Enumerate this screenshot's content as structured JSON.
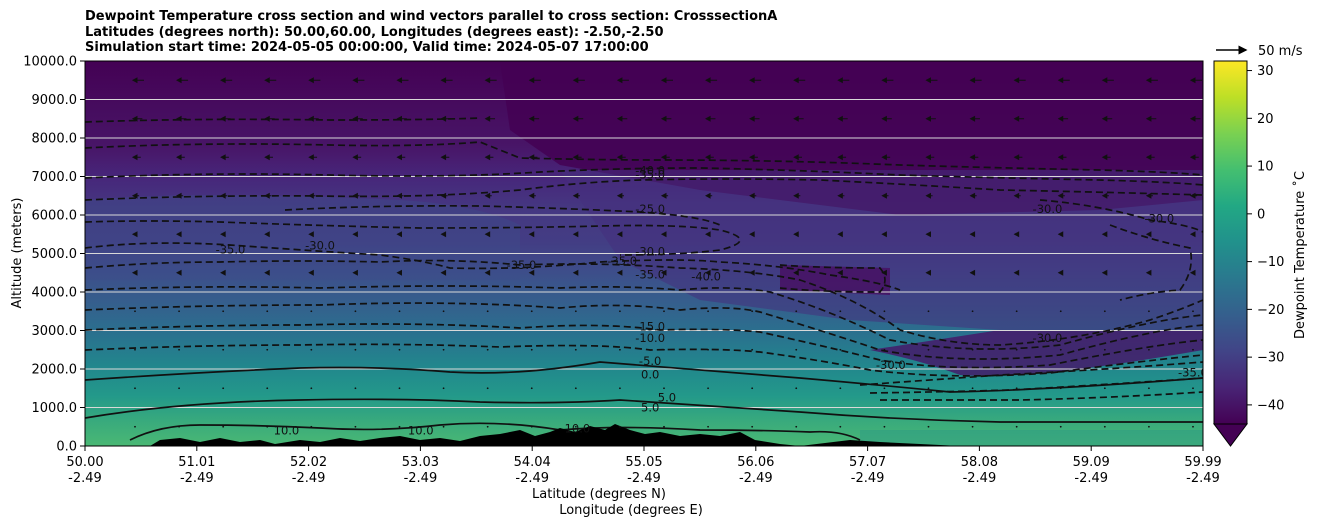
{
  "title_lines": [
    "Dewpoint Temperature cross section and wind vectors parallel to cross section: CrosssectionA",
    "Latitudes (degrees north): 50.00,60.00, Longitudes (degrees east): -2.50,-2.50",
    "Simulation start time: 2024-05-05 00:00:00, Valid time: 2024-05-07 17:00:00"
  ],
  "chart_data": {
    "type": "heatmap",
    "ylabel": "Altitude (meters)",
    "xlabel_line1": "Latitude (degrees N)",
    "xlabel_line2": "Longitude (degrees E)",
    "ylim": [
      0,
      10000
    ],
    "y_ticks": [
      "0.0",
      "1000.0",
      "2000.0",
      "3000.0",
      "4000.0",
      "5000.0",
      "6000.0",
      "7000.0",
      "8000.0",
      "9000.0",
      "10000.0"
    ],
    "x_ticks": [
      {
        "lat": "50.00",
        "lon": "-2.49"
      },
      {
        "lat": "51.01",
        "lon": "-2.49"
      },
      {
        "lat": "52.02",
        "lon": "-2.49"
      },
      {
        "lat": "53.03",
        "lon": "-2.49"
      },
      {
        "lat": "54.04",
        "lon": "-2.49"
      },
      {
        "lat": "55.05",
        "lon": "-2.49"
      },
      {
        "lat": "56.06",
        "lon": "-2.49"
      },
      {
        "lat": "57.07",
        "lon": "-2.49"
      },
      {
        "lat": "58.08",
        "lon": "-2.49"
      },
      {
        "lat": "59.09",
        "lon": "-2.49"
      },
      {
        "lat": "59.99",
        "lon": "-2.49"
      }
    ],
    "colorbar": {
      "label": "Dewpoint Temperature ˚C",
      "ticks": [
        "−40",
        "−30",
        "−20",
        "−10",
        "0",
        "10",
        "20",
        "30"
      ],
      "range": [
        -44,
        32
      ],
      "extend": "min",
      "colormap": "viridis"
    },
    "quiver_key": {
      "label": "50 m/s"
    },
    "grid": "horizontal",
    "contour_labels": [
      {
        "text": "-40.0",
        "lat": 55.05,
        "alt": 7050
      },
      {
        "text": "-35.0",
        "lat": 55.05,
        "alt": 6950
      },
      {
        "text": "-25.0",
        "lat": 55.05,
        "alt": 6050
      },
      {
        "text": "-30.0",
        "lat": 55.05,
        "alt": 4950
      },
      {
        "text": "-35.0",
        "lat": 54.8,
        "alt": 4700
      },
      {
        "text": "-35.0",
        "lat": 55.05,
        "alt": 4350
      },
      {
        "text": "-35.0",
        "lat": 53.9,
        "alt": 4600
      },
      {
        "text": "-35.0",
        "lat": 51.3,
        "alt": 5000
      },
      {
        "text": "-30.0",
        "lat": 52.1,
        "alt": 5100
      },
      {
        "text": "-40.0",
        "lat": 55.55,
        "alt": 4300
      },
      {
        "text": "-15.0",
        "lat": 55.05,
        "alt": 3000
      },
      {
        "text": "-10.0",
        "lat": 55.05,
        "alt": 2700
      },
      {
        "text": "-5.0",
        "lat": 55.05,
        "alt": 2100
      },
      {
        "text": "0.0",
        "lat": 55.05,
        "alt": 1750
      },
      {
        "text": "5.0",
        "lat": 55.2,
        "alt": 1150
      },
      {
        "text": "5.0",
        "lat": 55.05,
        "alt": 900
      },
      {
        "text": "10.0",
        "lat": 51.8,
        "alt": 300
      },
      {
        "text": "10.0",
        "lat": 53.0,
        "alt": 300
      },
      {
        "text": "10.0",
        "lat": 54.4,
        "alt": 350
      },
      {
        "text": "-30.0",
        "lat": 58.6,
        "alt": 2700
      },
      {
        "text": "-30.0",
        "lat": 59.6,
        "alt": 5800
      },
      {
        "text": "-30.0",
        "lat": 58.6,
        "alt": 6050
      },
      {
        "text": "-35.0",
        "lat": 59.9,
        "alt": 1800
      },
      {
        "text": "-30.0",
        "lat": 57.2,
        "alt": 2000
      }
    ]
  }
}
